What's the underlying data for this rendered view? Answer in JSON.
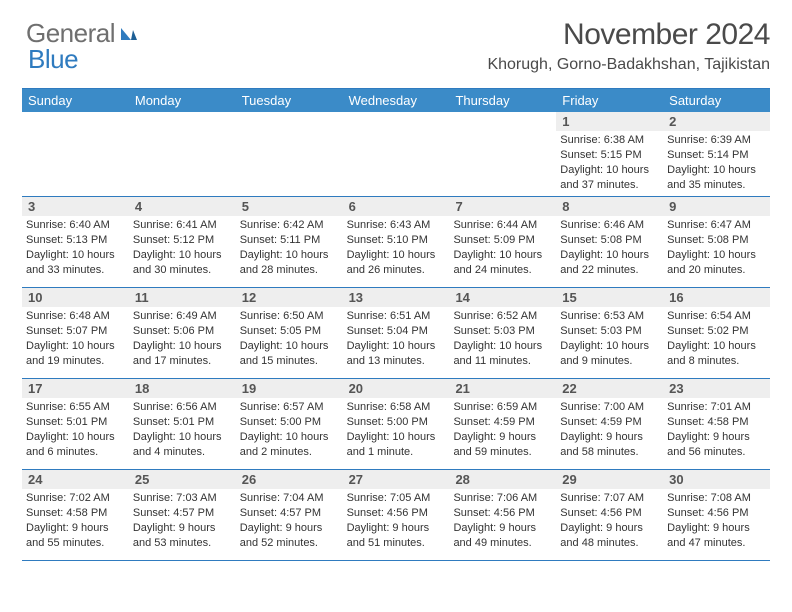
{
  "logo": {
    "text1": "General",
    "text2": "Blue"
  },
  "title": "November 2024",
  "subtitle": "Khorugh, Gorno-Badakhshan, Tajikistan",
  "colors": {
    "accent": "#3b8bc8",
    "rule": "#2f7bbf",
    "daynum_bg": "#eeeeee",
    "text": "#333333",
    "logo_gray": "#6f6f6f",
    "logo_blue": "#2f7bbf",
    "title_gray": "#4a4a4a"
  },
  "weekdays": [
    "Sunday",
    "Monday",
    "Tuesday",
    "Wednesday",
    "Thursday",
    "Friday",
    "Saturday"
  ],
  "weeks": [
    [
      null,
      null,
      null,
      null,
      null,
      {
        "d": "1",
        "sunrise": "Sunrise: 6:38 AM",
        "sunset": "Sunset: 5:15 PM",
        "day1": "Daylight: 10 hours",
        "day2": "and 37 minutes."
      },
      {
        "d": "2",
        "sunrise": "Sunrise: 6:39 AM",
        "sunset": "Sunset: 5:14 PM",
        "day1": "Daylight: 10 hours",
        "day2": "and 35 minutes."
      }
    ],
    [
      {
        "d": "3",
        "sunrise": "Sunrise: 6:40 AM",
        "sunset": "Sunset: 5:13 PM",
        "day1": "Daylight: 10 hours",
        "day2": "and 33 minutes."
      },
      {
        "d": "4",
        "sunrise": "Sunrise: 6:41 AM",
        "sunset": "Sunset: 5:12 PM",
        "day1": "Daylight: 10 hours",
        "day2": "and 30 minutes."
      },
      {
        "d": "5",
        "sunrise": "Sunrise: 6:42 AM",
        "sunset": "Sunset: 5:11 PM",
        "day1": "Daylight: 10 hours",
        "day2": "and 28 minutes."
      },
      {
        "d": "6",
        "sunrise": "Sunrise: 6:43 AM",
        "sunset": "Sunset: 5:10 PM",
        "day1": "Daylight: 10 hours",
        "day2": "and 26 minutes."
      },
      {
        "d": "7",
        "sunrise": "Sunrise: 6:44 AM",
        "sunset": "Sunset: 5:09 PM",
        "day1": "Daylight: 10 hours",
        "day2": "and 24 minutes."
      },
      {
        "d": "8",
        "sunrise": "Sunrise: 6:46 AM",
        "sunset": "Sunset: 5:08 PM",
        "day1": "Daylight: 10 hours",
        "day2": "and 22 minutes."
      },
      {
        "d": "9",
        "sunrise": "Sunrise: 6:47 AM",
        "sunset": "Sunset: 5:08 PM",
        "day1": "Daylight: 10 hours",
        "day2": "and 20 minutes."
      }
    ],
    [
      {
        "d": "10",
        "sunrise": "Sunrise: 6:48 AM",
        "sunset": "Sunset: 5:07 PM",
        "day1": "Daylight: 10 hours",
        "day2": "and 19 minutes."
      },
      {
        "d": "11",
        "sunrise": "Sunrise: 6:49 AM",
        "sunset": "Sunset: 5:06 PM",
        "day1": "Daylight: 10 hours",
        "day2": "and 17 minutes."
      },
      {
        "d": "12",
        "sunrise": "Sunrise: 6:50 AM",
        "sunset": "Sunset: 5:05 PM",
        "day1": "Daylight: 10 hours",
        "day2": "and 15 minutes."
      },
      {
        "d": "13",
        "sunrise": "Sunrise: 6:51 AM",
        "sunset": "Sunset: 5:04 PM",
        "day1": "Daylight: 10 hours",
        "day2": "and 13 minutes."
      },
      {
        "d": "14",
        "sunrise": "Sunrise: 6:52 AM",
        "sunset": "Sunset: 5:03 PM",
        "day1": "Daylight: 10 hours",
        "day2": "and 11 minutes."
      },
      {
        "d": "15",
        "sunrise": "Sunrise: 6:53 AM",
        "sunset": "Sunset: 5:03 PM",
        "day1": "Daylight: 10 hours",
        "day2": "and 9 minutes."
      },
      {
        "d": "16",
        "sunrise": "Sunrise: 6:54 AM",
        "sunset": "Sunset: 5:02 PM",
        "day1": "Daylight: 10 hours",
        "day2": "and 8 minutes."
      }
    ],
    [
      {
        "d": "17",
        "sunrise": "Sunrise: 6:55 AM",
        "sunset": "Sunset: 5:01 PM",
        "day1": "Daylight: 10 hours",
        "day2": "and 6 minutes."
      },
      {
        "d": "18",
        "sunrise": "Sunrise: 6:56 AM",
        "sunset": "Sunset: 5:01 PM",
        "day1": "Daylight: 10 hours",
        "day2": "and 4 minutes."
      },
      {
        "d": "19",
        "sunrise": "Sunrise: 6:57 AM",
        "sunset": "Sunset: 5:00 PM",
        "day1": "Daylight: 10 hours",
        "day2": "and 2 minutes."
      },
      {
        "d": "20",
        "sunrise": "Sunrise: 6:58 AM",
        "sunset": "Sunset: 5:00 PM",
        "day1": "Daylight: 10 hours",
        "day2": "and 1 minute."
      },
      {
        "d": "21",
        "sunrise": "Sunrise: 6:59 AM",
        "sunset": "Sunset: 4:59 PM",
        "day1": "Daylight: 9 hours",
        "day2": "and 59 minutes."
      },
      {
        "d": "22",
        "sunrise": "Sunrise: 7:00 AM",
        "sunset": "Sunset: 4:59 PM",
        "day1": "Daylight: 9 hours",
        "day2": "and 58 minutes."
      },
      {
        "d": "23",
        "sunrise": "Sunrise: 7:01 AM",
        "sunset": "Sunset: 4:58 PM",
        "day1": "Daylight: 9 hours",
        "day2": "and 56 minutes."
      }
    ],
    [
      {
        "d": "24",
        "sunrise": "Sunrise: 7:02 AM",
        "sunset": "Sunset: 4:58 PM",
        "day1": "Daylight: 9 hours",
        "day2": "and 55 minutes."
      },
      {
        "d": "25",
        "sunrise": "Sunrise: 7:03 AM",
        "sunset": "Sunset: 4:57 PM",
        "day1": "Daylight: 9 hours",
        "day2": "and 53 minutes."
      },
      {
        "d": "26",
        "sunrise": "Sunrise: 7:04 AM",
        "sunset": "Sunset: 4:57 PM",
        "day1": "Daylight: 9 hours",
        "day2": "and 52 minutes."
      },
      {
        "d": "27",
        "sunrise": "Sunrise: 7:05 AM",
        "sunset": "Sunset: 4:56 PM",
        "day1": "Daylight: 9 hours",
        "day2": "and 51 minutes."
      },
      {
        "d": "28",
        "sunrise": "Sunrise: 7:06 AM",
        "sunset": "Sunset: 4:56 PM",
        "day1": "Daylight: 9 hours",
        "day2": "and 49 minutes."
      },
      {
        "d": "29",
        "sunrise": "Sunrise: 7:07 AM",
        "sunset": "Sunset: 4:56 PM",
        "day1": "Daylight: 9 hours",
        "day2": "and 48 minutes."
      },
      {
        "d": "30",
        "sunrise": "Sunrise: 7:08 AM",
        "sunset": "Sunset: 4:56 PM",
        "day1": "Daylight: 9 hours",
        "day2": "and 47 minutes."
      }
    ]
  ]
}
